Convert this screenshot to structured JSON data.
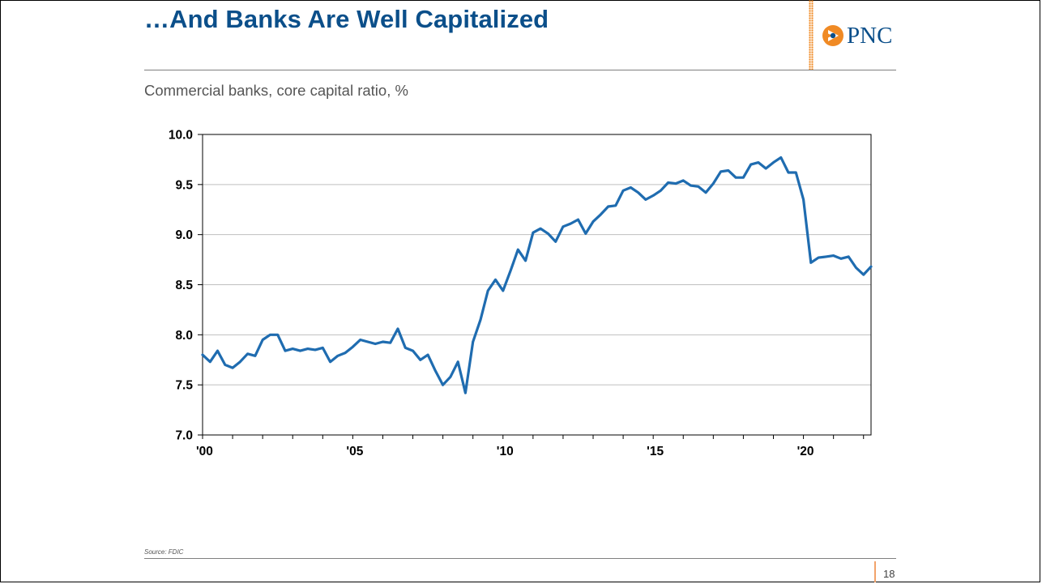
{
  "slide": {
    "title": "…And Banks Are Well Capitalized",
    "subtitle": "Commercial banks, core capital ratio, %",
    "source": "Source: FDIC",
    "page_number": "18",
    "logo_text": "PNC"
  },
  "colors": {
    "title": "#0b4f8a",
    "series_line": "#1f6cb0",
    "logo_orange": "#f08a24",
    "gridline": "#bfbfbf"
  },
  "chart_data": {
    "type": "line",
    "title": "",
    "xlabel": "",
    "ylabel": "",
    "xlim": [
      2000,
      2022.25
    ],
    "ylim": [
      7.0,
      10.0
    ],
    "x_ticks": [
      2000,
      2005,
      2010,
      2015,
      2020
    ],
    "x_tick_labels": [
      "'00",
      "'05",
      "'10",
      "'15",
      "'20"
    ],
    "y_ticks": [
      7.0,
      7.5,
      8.0,
      8.5,
      9.0,
      9.5,
      10.0
    ],
    "y_tick_labels": [
      "7.0",
      "7.5",
      "8.0",
      "8.5",
      "9.0",
      "9.5",
      "10.0"
    ],
    "grid": "horizontal",
    "x_start": 2000.0,
    "x_step": 0.25,
    "series": [
      {
        "name": "",
        "values": [
          7.8,
          7.73,
          7.84,
          7.7,
          7.67,
          7.73,
          7.81,
          7.79,
          7.95,
          8.0,
          8.0,
          7.84,
          7.86,
          7.84,
          7.86,
          7.85,
          7.87,
          7.73,
          7.79,
          7.82,
          7.88,
          7.95,
          7.93,
          7.91,
          7.93,
          7.92,
          8.06,
          7.87,
          7.84,
          7.75,
          7.8,
          7.64,
          7.5,
          7.58,
          7.73,
          7.42,
          7.93,
          8.15,
          8.44,
          8.55,
          8.44,
          8.64,
          8.85,
          8.74,
          9.02,
          9.06,
          9.01,
          8.93,
          9.08,
          9.11,
          9.15,
          9.01,
          9.13,
          9.2,
          9.28,
          9.29,
          9.44,
          9.47,
          9.42,
          9.35,
          9.39,
          9.44,
          9.52,
          9.51,
          9.54,
          9.49,
          9.48,
          9.42,
          9.51,
          9.63,
          9.64,
          9.57,
          9.57,
          9.7,
          9.72,
          9.66,
          9.72,
          9.77,
          9.62,
          9.62,
          9.35,
          8.72,
          8.77,
          8.78,
          8.79,
          8.76,
          8.78,
          8.67,
          8.6,
          8.68
        ]
      }
    ]
  }
}
